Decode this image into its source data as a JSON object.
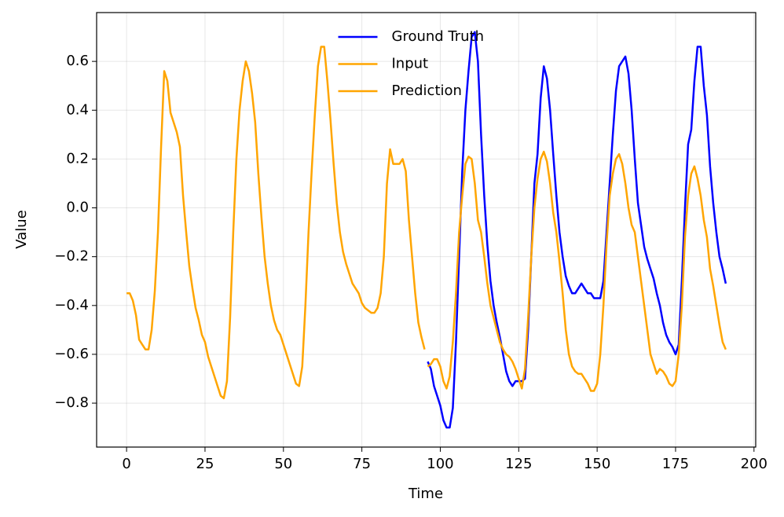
{
  "chart_data": {
    "type": "line",
    "x_label": "Time",
    "y_label": "Value",
    "x": [
      0,
      1,
      2,
      3,
      4,
      5,
      6,
      7,
      8,
      9,
      10,
      11,
      12,
      13,
      14,
      15,
      16,
      17,
      18,
      19,
      20,
      21,
      22,
      23,
      24,
      25,
      26,
      27,
      28,
      29,
      30,
      31,
      32,
      33,
      34,
      35,
      36,
      37,
      38,
      39,
      40,
      41,
      42,
      43,
      44,
      45,
      46,
      47,
      48,
      49,
      50,
      51,
      52,
      53,
      54,
      55,
      56,
      57,
      58,
      59,
      60,
      61,
      62,
      63,
      64,
      65,
      66,
      67,
      68,
      69,
      70,
      71,
      72,
      73,
      74,
      75,
      76,
      77,
      78,
      79,
      80,
      81,
      82,
      83,
      84,
      85,
      86,
      87,
      88,
      89,
      90,
      91,
      92,
      93,
      94,
      95,
      96,
      97,
      98,
      99,
      100,
      101,
      102,
      103,
      104,
      105,
      106,
      107,
      108,
      109,
      110,
      111,
      112,
      113,
      114,
      115,
      116,
      117,
      118,
      119,
      120,
      121,
      122,
      123,
      124,
      125,
      126,
      127,
      128,
      129,
      130,
      131,
      132,
      133,
      134,
      135,
      136,
      137,
      138,
      139,
      140,
      141,
      142,
      143,
      144,
      145,
      146,
      147,
      148,
      149,
      150,
      151,
      152,
      153,
      154,
      155,
      156,
      157,
      158,
      159,
      160,
      161,
      162,
      163,
      164,
      165,
      166,
      167,
      168,
      169,
      170,
      171,
      172,
      173,
      174,
      175,
      176,
      177,
      178,
      179,
      180,
      181,
      182,
      183,
      184,
      185,
      186,
      187,
      188,
      189,
      190,
      191
    ],
    "series": [
      {
        "name": "Ground Truth",
        "color": "#0000ff",
        "values": [
          null,
          null,
          null,
          null,
          null,
          null,
          null,
          null,
          null,
          null,
          null,
          null,
          null,
          null,
          null,
          null,
          null,
          null,
          null,
          null,
          null,
          null,
          null,
          null,
          null,
          null,
          null,
          null,
          null,
          null,
          null,
          null,
          null,
          null,
          null,
          null,
          null,
          null,
          null,
          null,
          null,
          null,
          null,
          null,
          null,
          null,
          null,
          null,
          null,
          null,
          null,
          null,
          null,
          null,
          null,
          null,
          null,
          null,
          null,
          null,
          null,
          null,
          null,
          null,
          null,
          null,
          null,
          null,
          null,
          null,
          null,
          null,
          null,
          null,
          null,
          null,
          null,
          null,
          null,
          null,
          null,
          null,
          null,
          null,
          null,
          null,
          null,
          null,
          null,
          null,
          null,
          null,
          null,
          null,
          null,
          null,
          -0.63,
          -0.66,
          -0.73,
          -0.77,
          -0.81,
          -0.87,
          -0.9,
          -0.9,
          -0.82,
          -0.55,
          -0.2,
          0.15,
          0.4,
          0.56,
          0.7,
          0.72,
          0.6,
          0.3,
          0.05,
          -0.15,
          -0.3,
          -0.4,
          -0.47,
          -0.53,
          -0.6,
          -0.67,
          -0.71,
          -0.73,
          -0.71,
          -0.71,
          -0.71,
          -0.7,
          -0.5,
          -0.2,
          0.1,
          0.22,
          0.45,
          0.58,
          0.53,
          0.4,
          0.22,
          0.05,
          -0.1,
          -0.2,
          -0.28,
          -0.32,
          -0.35,
          -0.35,
          -0.33,
          -0.31,
          -0.33,
          -0.35,
          -0.35,
          -0.37,
          -0.37,
          -0.37,
          -0.3,
          -0.1,
          0.1,
          0.3,
          0.48,
          0.58,
          0.6,
          0.62,
          0.55,
          0.4,
          0.2,
          0.02,
          -0.07,
          -0.16,
          -0.21,
          -0.25,
          -0.29,
          -0.35,
          -0.4,
          -0.47,
          -0.52,
          -0.55,
          -0.57,
          -0.6,
          -0.56,
          -0.3,
          0.0,
          0.26,
          0.32,
          0.52,
          0.66,
          0.66,
          0.5,
          0.38,
          0.17,
          0.02,
          -0.1,
          -0.2,
          -0.25,
          -0.31
        ]
      },
      {
        "name": "Input",
        "color": "#ffa500",
        "values": [
          -0.35,
          -0.35,
          -0.38,
          -0.44,
          -0.54,
          -0.56,
          -0.58,
          -0.58,
          -0.5,
          -0.34,
          -0.1,
          0.25,
          0.56,
          0.52,
          0.39,
          0.35,
          0.31,
          0.25,
          0.05,
          -0.1,
          -0.24,
          -0.33,
          -0.41,
          -0.46,
          -0.52,
          -0.55,
          -0.61,
          -0.65,
          -0.69,
          -0.73,
          -0.77,
          -0.78,
          -0.71,
          -0.45,
          -0.1,
          0.2,
          0.4,
          0.52,
          0.6,
          0.56,
          0.47,
          0.35,
          0.14,
          -0.04,
          -0.2,
          -0.31,
          -0.4,
          -0.46,
          -0.5,
          -0.52,
          -0.56,
          -0.6,
          -0.64,
          -0.68,
          -0.72,
          -0.73,
          -0.65,
          -0.4,
          -0.1,
          0.15,
          0.38,
          0.58,
          0.66,
          0.66,
          0.52,
          0.36,
          0.18,
          0.02,
          -0.1,
          -0.18,
          -0.23,
          -0.27,
          -0.31,
          -0.33,
          -0.35,
          -0.39,
          -0.41,
          -0.42,
          -0.43,
          -0.43,
          -0.41,
          -0.35,
          -0.2,
          0.1,
          0.24,
          0.18,
          0.18,
          0.18,
          0.2,
          0.15,
          -0.05,
          -0.2,
          -0.35,
          -0.47,
          -0.53,
          -0.58,
          null,
          null,
          null,
          null,
          null,
          null,
          null,
          null,
          null,
          null,
          null,
          null,
          null,
          null,
          null,
          null,
          null,
          null,
          null,
          null,
          null,
          null,
          null,
          null,
          null,
          null,
          null,
          null,
          null,
          null,
          null,
          null,
          null,
          null,
          null,
          null,
          null,
          null,
          null,
          null,
          null,
          null,
          null,
          null,
          null,
          null,
          null,
          null,
          null,
          null,
          null,
          null,
          null,
          null,
          null,
          null,
          null,
          null,
          null,
          null,
          null,
          null,
          null,
          null,
          null,
          null,
          null,
          null,
          null,
          null,
          null,
          null,
          null,
          null,
          null,
          null,
          null,
          null,
          null,
          null,
          null,
          null,
          null,
          null,
          null,
          null,
          null,
          null,
          null,
          null,
          null,
          null,
          null,
          null,
          null,
          null
        ]
      },
      {
        "name": "Prediction",
        "color": "#ffa500",
        "values": [
          null,
          null,
          null,
          null,
          null,
          null,
          null,
          null,
          null,
          null,
          null,
          null,
          null,
          null,
          null,
          null,
          null,
          null,
          null,
          null,
          null,
          null,
          null,
          null,
          null,
          null,
          null,
          null,
          null,
          null,
          null,
          null,
          null,
          null,
          null,
          null,
          null,
          null,
          null,
          null,
          null,
          null,
          null,
          null,
          null,
          null,
          null,
          null,
          null,
          null,
          null,
          null,
          null,
          null,
          null,
          null,
          null,
          null,
          null,
          null,
          null,
          null,
          null,
          null,
          null,
          null,
          null,
          null,
          null,
          null,
          null,
          null,
          null,
          null,
          null,
          null,
          null,
          null,
          null,
          null,
          null,
          null,
          null,
          null,
          null,
          null,
          null,
          null,
          null,
          null,
          null,
          null,
          null,
          null,
          null,
          null,
          -0.65,
          -0.64,
          -0.62,
          -0.62,
          -0.65,
          -0.71,
          -0.74,
          -0.69,
          -0.55,
          -0.35,
          -0.1,
          0.05,
          0.18,
          0.21,
          0.2,
          0.1,
          -0.05,
          -0.1,
          -0.2,
          -0.31,
          -0.4,
          -0.45,
          -0.5,
          -0.55,
          -0.58,
          -0.6,
          -0.61,
          -0.63,
          -0.66,
          -0.7,
          -0.74,
          -0.66,
          -0.45,
          -0.2,
          0.0,
          0.12,
          0.2,
          0.23,
          0.19,
          0.1,
          -0.02,
          -0.1,
          -0.22,
          -0.35,
          -0.5,
          -0.6,
          -0.65,
          -0.67,
          -0.68,
          -0.68,
          -0.7,
          -0.72,
          -0.75,
          -0.75,
          -0.72,
          -0.6,
          -0.4,
          -0.15,
          0.05,
          0.14,
          0.2,
          0.22,
          0.18,
          0.1,
          0.0,
          -0.07,
          -0.1,
          -0.2,
          -0.3,
          -0.4,
          -0.5,
          -0.6,
          -0.64,
          -0.68,
          -0.66,
          -0.67,
          -0.69,
          -0.72,
          -0.73,
          -0.71,
          -0.6,
          -0.4,
          -0.12,
          0.05,
          0.14,
          0.17,
          0.12,
          0.05,
          -0.05,
          -0.12,
          -0.25,
          -0.32,
          -0.4,
          -0.48,
          -0.55,
          -0.58
        ]
      }
    ],
    "xlim": [
      -9.55,
      200.55
    ],
    "ylim": [
      -0.98,
      0.8
    ],
    "xticks": [
      0,
      25,
      50,
      75,
      100,
      125,
      150,
      175,
      200
    ],
    "yticks": [
      {
        "value": -0.8,
        "label": "−0.8"
      },
      {
        "value": -0.6,
        "label": "−0.6"
      },
      {
        "value": -0.4,
        "label": "−0.4"
      },
      {
        "value": -0.2,
        "label": "−0.2"
      },
      {
        "value": 0,
        "label": "0.0"
      },
      0.2,
      0.4,
      0.6
    ],
    "grid": true,
    "legend": "upper center"
  }
}
